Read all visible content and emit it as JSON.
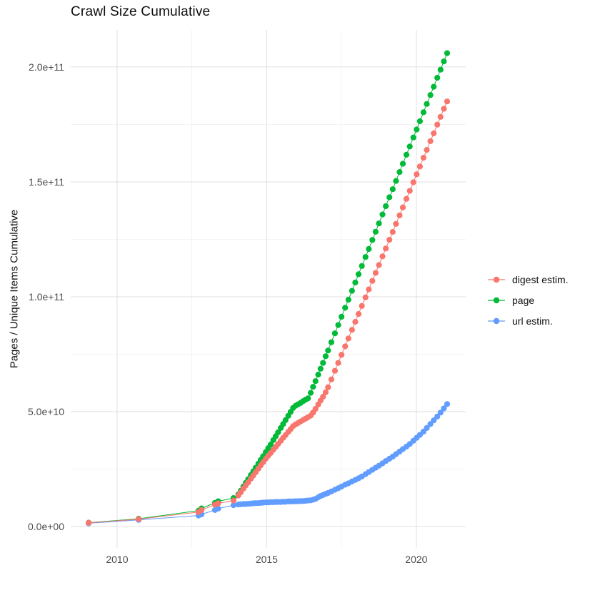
{
  "title": "Crawl Size Cumulative",
  "chart_data": {
    "type": "scatter",
    "title": "Crawl Size Cumulative",
    "xlabel": "",
    "ylabel": "Pages / Unique Items Cumulative",
    "value_unit": "values are in billions (1e9); y axis shows scientific notation",
    "grid": true,
    "legend_position": "right",
    "xlim": [
      2008.45,
      2021.65
    ],
    "ylim_e9": [
      -9.3,
      216.1
    ],
    "x_ticks": [
      {
        "value": 2010,
        "label": "2010"
      },
      {
        "value": 2015,
        "label": "2015"
      },
      {
        "value": 2020,
        "label": "2020"
      }
    ],
    "x_minor_ticks": [
      2012.5,
      2017.5
    ],
    "y_ticks": [
      {
        "value_e9": 0,
        "label": "0.0e+00"
      },
      {
        "value_e9": 50,
        "label": "5.0e+10"
      },
      {
        "value_e9": 100,
        "label": "1.0e+11"
      },
      {
        "value_e9": 150,
        "label": "1.5e+11"
      },
      {
        "value_e9": 200,
        "label": "2.0e+11"
      }
    ],
    "y_minor_ticks_e9": [
      25,
      75,
      125,
      175
    ],
    "x": [
      2009.05,
      2010.72,
      2012.72,
      2012.82,
      2013.27,
      2013.38,
      2013.89,
      2014.05,
      2014.13,
      2014.22,
      2014.3,
      2014.38,
      2014.47,
      2014.55,
      2014.63,
      2014.72,
      2014.8,
      2014.88,
      2014.97,
      2015.05,
      2015.13,
      2015.22,
      2015.3,
      2015.38,
      2015.47,
      2015.55,
      2015.63,
      2015.72,
      2015.8,
      2015.88,
      2015.97,
      2016.05,
      2016.13,
      2016.22,
      2016.3,
      2016.38,
      2016.47,
      2016.55,
      2016.63,
      2016.72,
      2016.8,
      2016.88,
      2016.97,
      2017.05,
      2017.16,
      2017.28,
      2017.39,
      2017.5,
      2017.62,
      2017.73,
      2017.85,
      2017.96,
      2018.07,
      2018.18,
      2018.3,
      2018.41,
      2018.53,
      2018.64,
      2018.75,
      2018.87,
      2018.98,
      2019.1,
      2019.21,
      2019.32,
      2019.44,
      2019.55,
      2019.67,
      2019.78,
      2019.9,
      2020.01,
      2020.12,
      2020.24,
      2020.35,
      2020.47,
      2020.58,
      2020.7,
      2020.81,
      2020.92,
      2021.03
    ],
    "series": [
      {
        "name": "digest estim.",
        "color": "#F8766D",
        "values_e9": [
          1.6,
          3.2,
          6.3,
          7.2,
          9.5,
          10.1,
          11.3,
          13.5,
          14.9,
          16.5,
          17.9,
          19.2,
          20.8,
          22.2,
          23.6,
          25.2,
          26.6,
          28.0,
          29.5,
          30.8,
          32.0,
          33.4,
          34.7,
          35.9,
          37.3,
          38.6,
          39.8,
          41.2,
          42.4,
          43.7,
          44.5,
          45.1,
          45.7,
          46.4,
          47.0,
          47.6,
          48.3,
          49.6,
          51.2,
          53.1,
          54.8,
          56.5,
          58.4,
          60.6,
          64.0,
          67.8,
          71.2,
          74.7,
          78.4,
          81.9,
          85.6,
          89.1,
          92.5,
          96.0,
          99.7,
          103.2,
          106.9,
          110.4,
          113.8,
          117.6,
          121.0,
          124.8,
          128.2,
          131.7,
          135.4,
          138.9,
          142.6,
          146.1,
          149.8,
          153.3,
          156.7,
          160.5,
          163.9,
          167.7,
          171.1,
          174.9,
          178.3,
          181.8,
          185.0
        ]
      },
      {
        "name": "page",
        "color": "#00BA38",
        "values_e9": [
          1.7,
          3.4,
          6.9,
          7.9,
          10.3,
          11.0,
          12.4,
          14.0,
          15.6,
          17.4,
          19.0,
          20.6,
          22.4,
          24.0,
          25.6,
          27.4,
          29.0,
          30.6,
          32.4,
          34.1,
          35.7,
          37.6,
          39.3,
          41.0,
          42.9,
          44.6,
          46.3,
          48.2,
          49.9,
          51.6,
          52.6,
          53.2,
          53.8,
          54.6,
          55.2,
          55.8,
          58.2,
          60.8,
          63.3,
          66.1,
          68.7,
          71.2,
          74.1,
          76.6,
          80.2,
          84.1,
          87.7,
          91.3,
          95.2,
          98.7,
          102.6,
          106.2,
          109.8,
          113.4,
          117.3,
          120.8,
          124.7,
          128.3,
          131.9,
          135.8,
          139.4,
          143.3,
          146.8,
          150.4,
          154.3,
          157.9,
          161.8,
          165.4,
          169.3,
          172.8,
          176.4,
          180.3,
          183.9,
          187.8,
          191.4,
          195.3,
          198.8,
          202.4,
          206.0
        ]
      },
      {
        "name": "url estim.",
        "color": "#619CFF",
        "values_e9": [
          1.4,
          2.9,
          4.8,
          5.3,
          7.2,
          7.8,
          9.3,
          9.6,
          9.7,
          9.8,
          9.8,
          9.9,
          10.0,
          10.1,
          10.2,
          10.2,
          10.3,
          10.4,
          10.5,
          10.5,
          10.6,
          10.6,
          10.7,
          10.7,
          10.7,
          10.8,
          10.8,
          10.9,
          10.9,
          10.9,
          11.0,
          11.0,
          11.1,
          11.1,
          11.2,
          11.3,
          11.4,
          11.7,
          12.0,
          12.7,
          13.3,
          13.7,
          14.2,
          14.6,
          15.3,
          16.0,
          16.7,
          17.4,
          18.2,
          18.8,
          19.6,
          20.3,
          21.0,
          21.8,
          22.8,
          23.7,
          24.7,
          25.6,
          26.5,
          27.5,
          28.5,
          29.5,
          30.4,
          31.5,
          32.6,
          33.7,
          34.8,
          35.9,
          37.3,
          38.6,
          39.9,
          41.3,
          42.9,
          44.6,
          46.2,
          47.9,
          49.6,
          51.4,
          53.3
        ]
      }
    ]
  },
  "style": {
    "grid_major_color": "#e3e3e3",
    "grid_minor_color": "#efefef",
    "tick_label_color": "#4d4d4d"
  }
}
